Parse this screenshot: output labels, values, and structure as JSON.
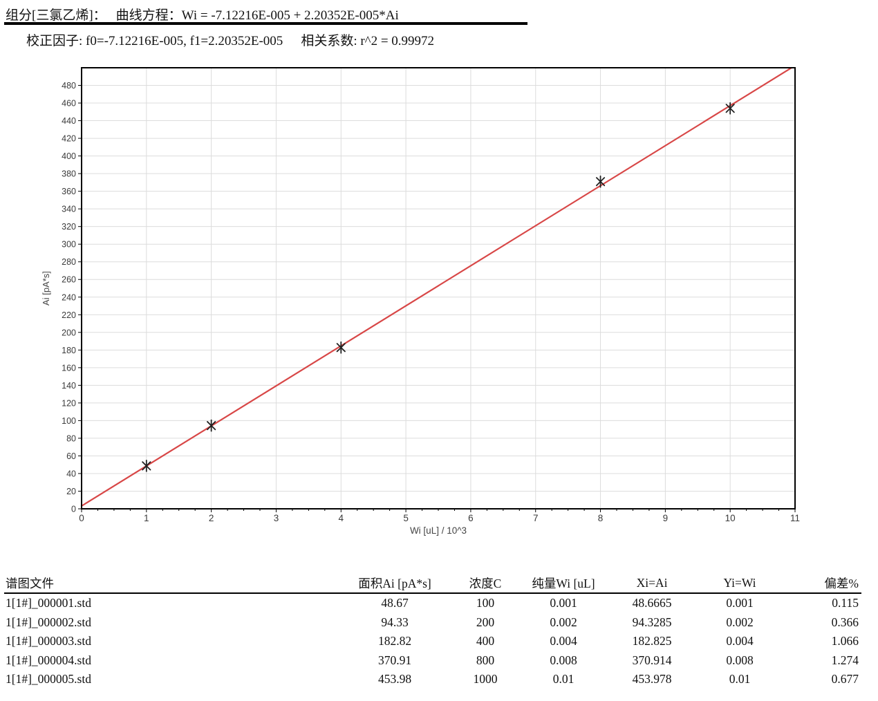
{
  "header": {
    "component": "组分[三氯乙烯]：",
    "equation": "曲线方程：Wi = -7.12216E-005 + 2.20352E-005*Ai",
    "factors": "校正因子: f0=-7.12216E-005, f1=2.20352E-005",
    "correlation": "相关系数: r^2 = 0.99972"
  },
  "chart_data": {
    "type": "scatter",
    "title": "",
    "xlabel": "Wi [uL] / 10^3",
    "ylabel": "Ai [pA*s]",
    "xlim": [
      0,
      11
    ],
    "ylim": [
      0,
      500
    ],
    "x_tick_step": 1,
    "x_minor_tick_step": 0.25,
    "y_tick_step": 20,
    "y_tick_max": 480,
    "grid": true,
    "points": [
      [
        1,
        48.67
      ],
      [
        2,
        94.33
      ],
      [
        4,
        182.82
      ],
      [
        8,
        370.91
      ],
      [
        10,
        453.98
      ]
    ],
    "fit": {
      "f0": -7.12216e-05,
      "f1": 2.20352e-05,
      "r2": 0.99972
    },
    "colors": {
      "line": "#d84747",
      "marker": "#222222",
      "grid": "#dcdcdc",
      "frame": "#000000",
      "tick_label": "#3a3a3a"
    }
  },
  "table": {
    "columns": [
      {
        "label": "谱图文件",
        "align": "left"
      },
      {
        "label": "面积Ai [pA*s]",
        "align": "center"
      },
      {
        "label": "浓度C",
        "align": "center"
      },
      {
        "label": "纯量Wi [uL]",
        "align": "center"
      },
      {
        "label": "Xi=Ai",
        "align": "center"
      },
      {
        "label": "Yi=Wi",
        "align": "center"
      },
      {
        "label": "偏差%",
        "align": "right"
      }
    ],
    "rows": [
      [
        "1[1#]_000001.std",
        "48.67",
        "100",
        "0.001",
        "48.6665",
        "0.001",
        "0.115"
      ],
      [
        "1[1#]_000002.std",
        "94.33",
        "200",
        "0.002",
        "94.3285",
        "0.002",
        "0.366"
      ],
      [
        "1[1#]_000003.std",
        "182.82",
        "400",
        "0.004",
        "182.825",
        "0.004",
        "1.066"
      ],
      [
        "1[1#]_000004.std",
        "370.91",
        "800",
        "0.008",
        "370.914",
        "0.008",
        "1.274"
      ],
      [
        "1[1#]_000005.std",
        "453.98",
        "1000",
        "0.01",
        "453.978",
        "0.01",
        "0.677"
      ]
    ]
  }
}
